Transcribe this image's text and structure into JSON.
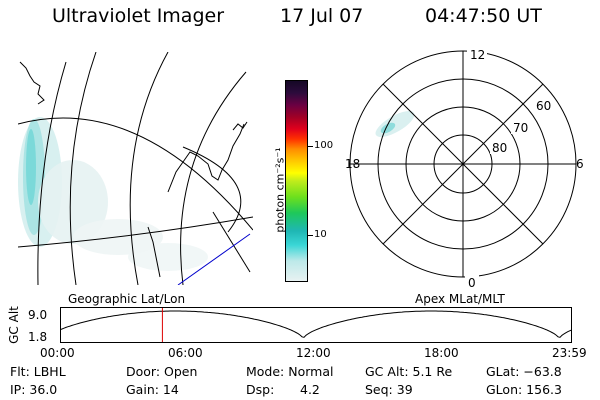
{
  "header": {
    "title": "Ultraviolet Imager",
    "date": "17 Jul 07",
    "time": "04:47:50 UT"
  },
  "colorbar": {
    "unit_label": "photon cm⁻²s⁻¹",
    "ticks": [
      "100",
      "10"
    ],
    "colors": [
      "#e8f2f2",
      "#bde9e9",
      "#3ad6d6",
      "#1fb7b4",
      "#1ec85a",
      "#6de01d",
      "#c0ec1c",
      "#ffff00",
      "#ffc800",
      "#ff8c00",
      "#ff3000",
      "#e0001c",
      "#a00026",
      "#6a0042",
      "#2c0b3c",
      "#150826"
    ]
  },
  "polar": {
    "labels": {
      "top": "12",
      "bottom": "0",
      "left": "18",
      "right": "6",
      "lat60": "60",
      "lat70": "70",
      "lat80": "80"
    }
  },
  "orbit": {
    "ylabel": "GC Alt",
    "ymax": "9.0",
    "ymin": "1.8",
    "left_caption": "Geographic Lat/Lon",
    "right_caption": "Apex MLat/MLT",
    "xticks": [
      "00:00",
      "06:00",
      "12:00",
      "18:00",
      "23:59"
    ],
    "current_fraction": 0.2
  },
  "info": {
    "flt": "Flt: LBHL",
    "ip": "IP: 36.0",
    "door": "Door: Open",
    "gain": "Gain: 14",
    "mode": "Mode: Normal",
    "dsp_label": "Dsp:",
    "dsp_value": "4.2",
    "gcalt": "GC Alt: 5.1 Re",
    "seq": "Seq: 39",
    "glat": "GLat: −63.8",
    "glon": "GLon: 156.3"
  }
}
